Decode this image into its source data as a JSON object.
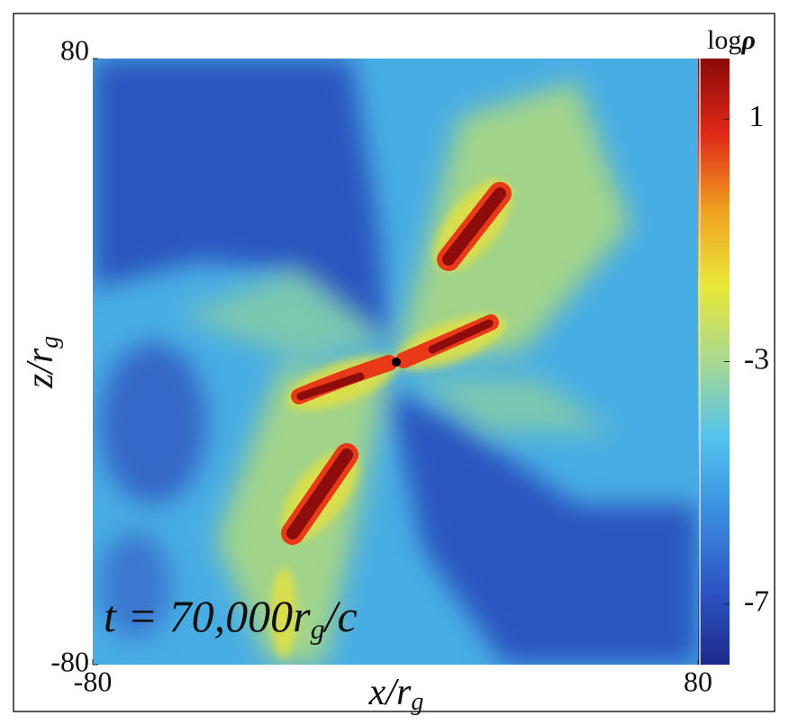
{
  "chart_data": {
    "type": "heatmap",
    "xlabel": [
      "x/r",
      "g"
    ],
    "ylabel": [
      "z/r",
      "g"
    ],
    "annotation": [
      "t = 70,000r",
      "g",
      "/c"
    ],
    "xlim": [
      -80,
      80
    ],
    "xticks": [
      -80,
      80
    ],
    "ylim": [
      -80,
      80
    ],
    "yticks": [
      -80,
      80
    ],
    "colorbar": {
      "label": [
        "log",
        "ρ"
      ],
      "lim": [
        -8,
        2
      ],
      "ticks": [
        1,
        -3,
        -7
      ],
      "colors": [
        "#1e2a8c",
        "#2d55c4",
        "#3a8ee0",
        "#52c3ee",
        "#a8d890",
        "#e8e838",
        "#f0a020",
        "#e02818",
        "#8c0a0a"
      ]
    }
  }
}
